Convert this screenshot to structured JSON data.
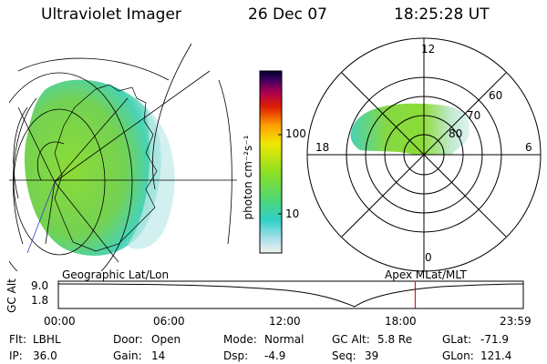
{
  "header": {
    "instrument": "Ultraviolet Imager",
    "date": "26 Dec 07",
    "time": "18:25:28 UT"
  },
  "colorbar": {
    "unit_label": "photon cm⁻²s⁻¹",
    "ticks": [
      "100",
      "10"
    ]
  },
  "polar_plot": {
    "mlt_labels": {
      "top": "12",
      "left": "18",
      "right": "6",
      "bottom": "0"
    },
    "lat_labels": [
      "60",
      "70",
      "80"
    ]
  },
  "altitude_strip": {
    "left_title": "Geographic Lat/Lon",
    "right_title": "Apex MLat/MLT",
    "y_axis_label": "GC Alt",
    "y_ticks": [
      "9.0",
      "1.8"
    ],
    "x_ticks": [
      "00:00",
      "06:00",
      "12:00",
      "18:00",
      "23:59"
    ],
    "current_time_hours": 18.42
  },
  "metadata": {
    "flt": {
      "label": "Flt:",
      "value": "LBHL"
    },
    "ip": {
      "label": "IP:",
      "value": "36.0"
    },
    "door": {
      "label": "Door:",
      "value": "Open"
    },
    "gain": {
      "label": "Gain:",
      "value": "14"
    },
    "mode": {
      "label": "Mode:",
      "value": "Normal"
    },
    "dsp": {
      "label": "Dsp:",
      "value": "-4.9"
    },
    "gcalt": {
      "label": "GC Alt:",
      "value": "5.8 Re"
    },
    "seq": {
      "label": "Seq:",
      "value": "39"
    },
    "glat": {
      "label": "GLat:",
      "value": "-71.9"
    },
    "glon": {
      "label": "GLon:",
      "value": "121.4"
    }
  },
  "colors": {
    "aurora_green": "#7fd63a",
    "aurora_cyan": "#3fd9d2",
    "marker_red": "#d10000"
  }
}
